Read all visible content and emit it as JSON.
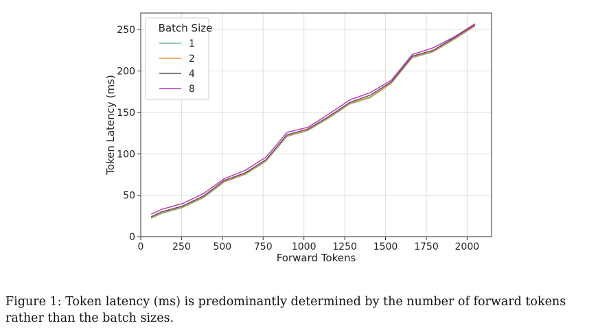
{
  "chart_data": {
    "type": "line",
    "xlabel": "Forward Tokens",
    "ylabel": "Token Latency (ms)",
    "xlim": [
      0,
      2150
    ],
    "ylim": [
      0,
      270
    ],
    "xticks": [
      0,
      250,
      500,
      750,
      1000,
      1250,
      1500,
      1750,
      2000
    ],
    "yticks": [
      0,
      50,
      100,
      150,
      200,
      250
    ],
    "grid": true,
    "legend": {
      "title": "Batch Size",
      "placement": "top-left"
    },
    "x": [
      64,
      128,
      256,
      384,
      512,
      640,
      768,
      896,
      1024,
      1152,
      1280,
      1408,
      1536,
      1664,
      1792,
      1920,
      2048
    ],
    "series": [
      {
        "name": "1",
        "color": "#6fb8a0",
        "values": [
          22,
          28,
          35,
          47,
          66,
          75,
          91,
          121,
          128,
          143,
          160,
          168,
          185,
          216,
          223,
          238,
          254
        ]
      },
      {
        "name": "2",
        "color": "#f08a3c",
        "values": [
          23,
          29,
          36,
          48,
          67,
          76,
          92,
          122,
          129,
          144,
          161,
          169,
          186,
          217,
          224,
          239,
          255
        ]
      },
      {
        "name": "4",
        "color": "#555555",
        "values": [
          24,
          30,
          37,
          49,
          68,
          77,
          93,
          123,
          130,
          145,
          162,
          171,
          187,
          218,
          225,
          240,
          256
        ]
      },
      {
        "name": "8",
        "color": "#c030b8",
        "values": [
          27,
          33,
          40,
          52,
          70,
          80,
          96,
          126,
          132,
          148,
          165,
          174,
          189,
          220,
          228,
          241,
          257
        ]
      }
    ]
  },
  "caption": "Figure 1: Token latency (ms) is predominantly determined by the number of forward tokens rather than the batch sizes."
}
